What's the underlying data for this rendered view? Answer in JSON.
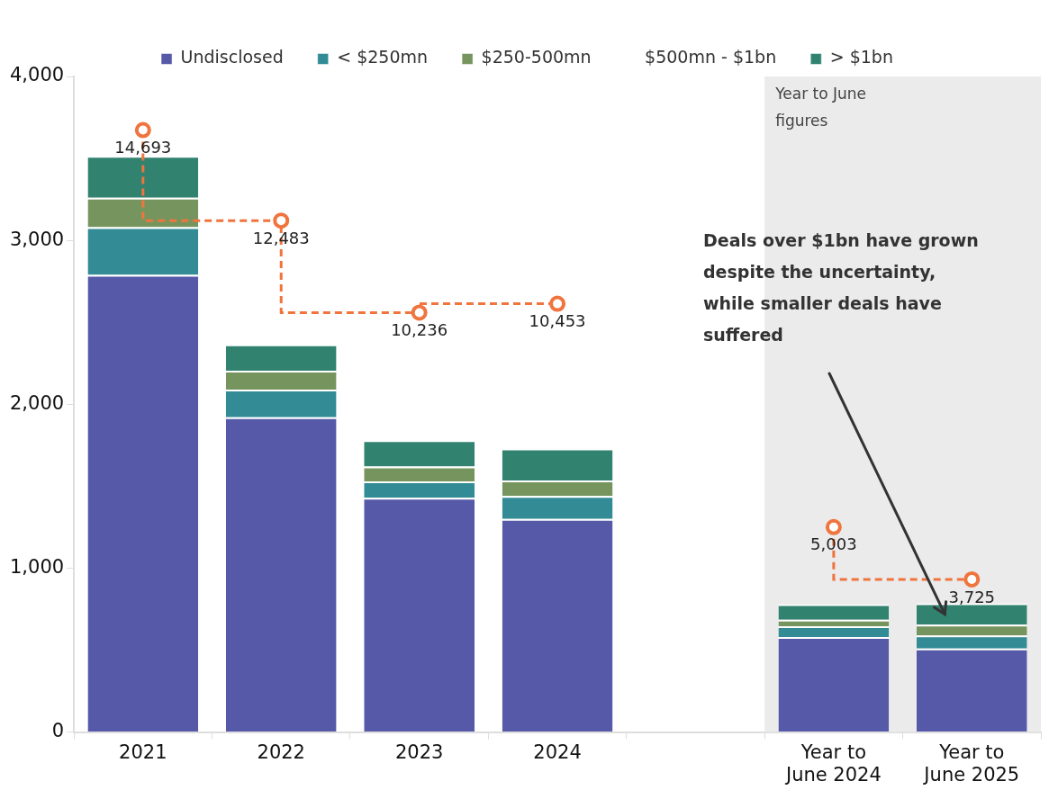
{
  "chart_data": {
    "type": "bar",
    "stacked": true,
    "categories": [
      "2021",
      "2022",
      "2023",
      "2024",
      null,
      "Year to June 2024",
      "Year to June 2025"
    ],
    "series": [
      {
        "name": "Undisclosed",
        "color": "#5659a8",
        "values": [
          2790,
          1920,
          1430,
          1300,
          null,
          580,
          510
        ]
      },
      {
        "name": "< $250mn",
        "color": "#328b95",
        "values": [
          290,
          170,
          100,
          140,
          null,
          65,
          80
        ]
      },
      {
        "name": "$250-500mn",
        "color": "#76955e",
        "values": [
          180,
          115,
          90,
          95,
          null,
          40,
          65
        ]
      },
      {
        "name": "$500mn - $1bn",
        "values": [
          null,
          null,
          null,
          null,
          null,
          null,
          null
        ]
      },
      {
        "name": "> $1bn",
        "color": "#328270",
        "values": [
          255,
          160,
          160,
          195,
          null,
          95,
          130
        ]
      },
      {
        "type": "step",
        "axis": "y2",
        "color": "#f0743e",
        "marker": "circle",
        "line_style": "dashed",
        "values": [
          14693,
          12483,
          10236,
          10453,
          null,
          5003,
          3725
        ],
        "value_labels": [
          "14,693",
          "12,483",
          "10,236",
          "10,453",
          null,
          "5,003",
          "3,725"
        ]
      }
    ],
    "ylim": [
      0,
      4000
    ],
    "yticks": [
      {
        "value": 0,
        "label": "0"
      },
      {
        "value": 1000,
        "label": "1,000"
      },
      {
        "value": 2000,
        "label": "2,000"
      },
      {
        "value": 3000,
        "label": "3,000"
      },
      {
        "value": 4000,
        "label": "4,000"
      }
    ],
    "tick_labels": "xy",
    "grid": false,
    "legend": "top",
    "bands": [
      {
        "axis": "x",
        "from": "Year to June 2024",
        "to": "Year to June 2025",
        "label": "Year to June figures",
        "color": "#ebebeb"
      }
    ],
    "annotations": [
      "Deals over $1bn have grown despite the uncertainty, while smaller deals have suffered"
    ]
  }
}
